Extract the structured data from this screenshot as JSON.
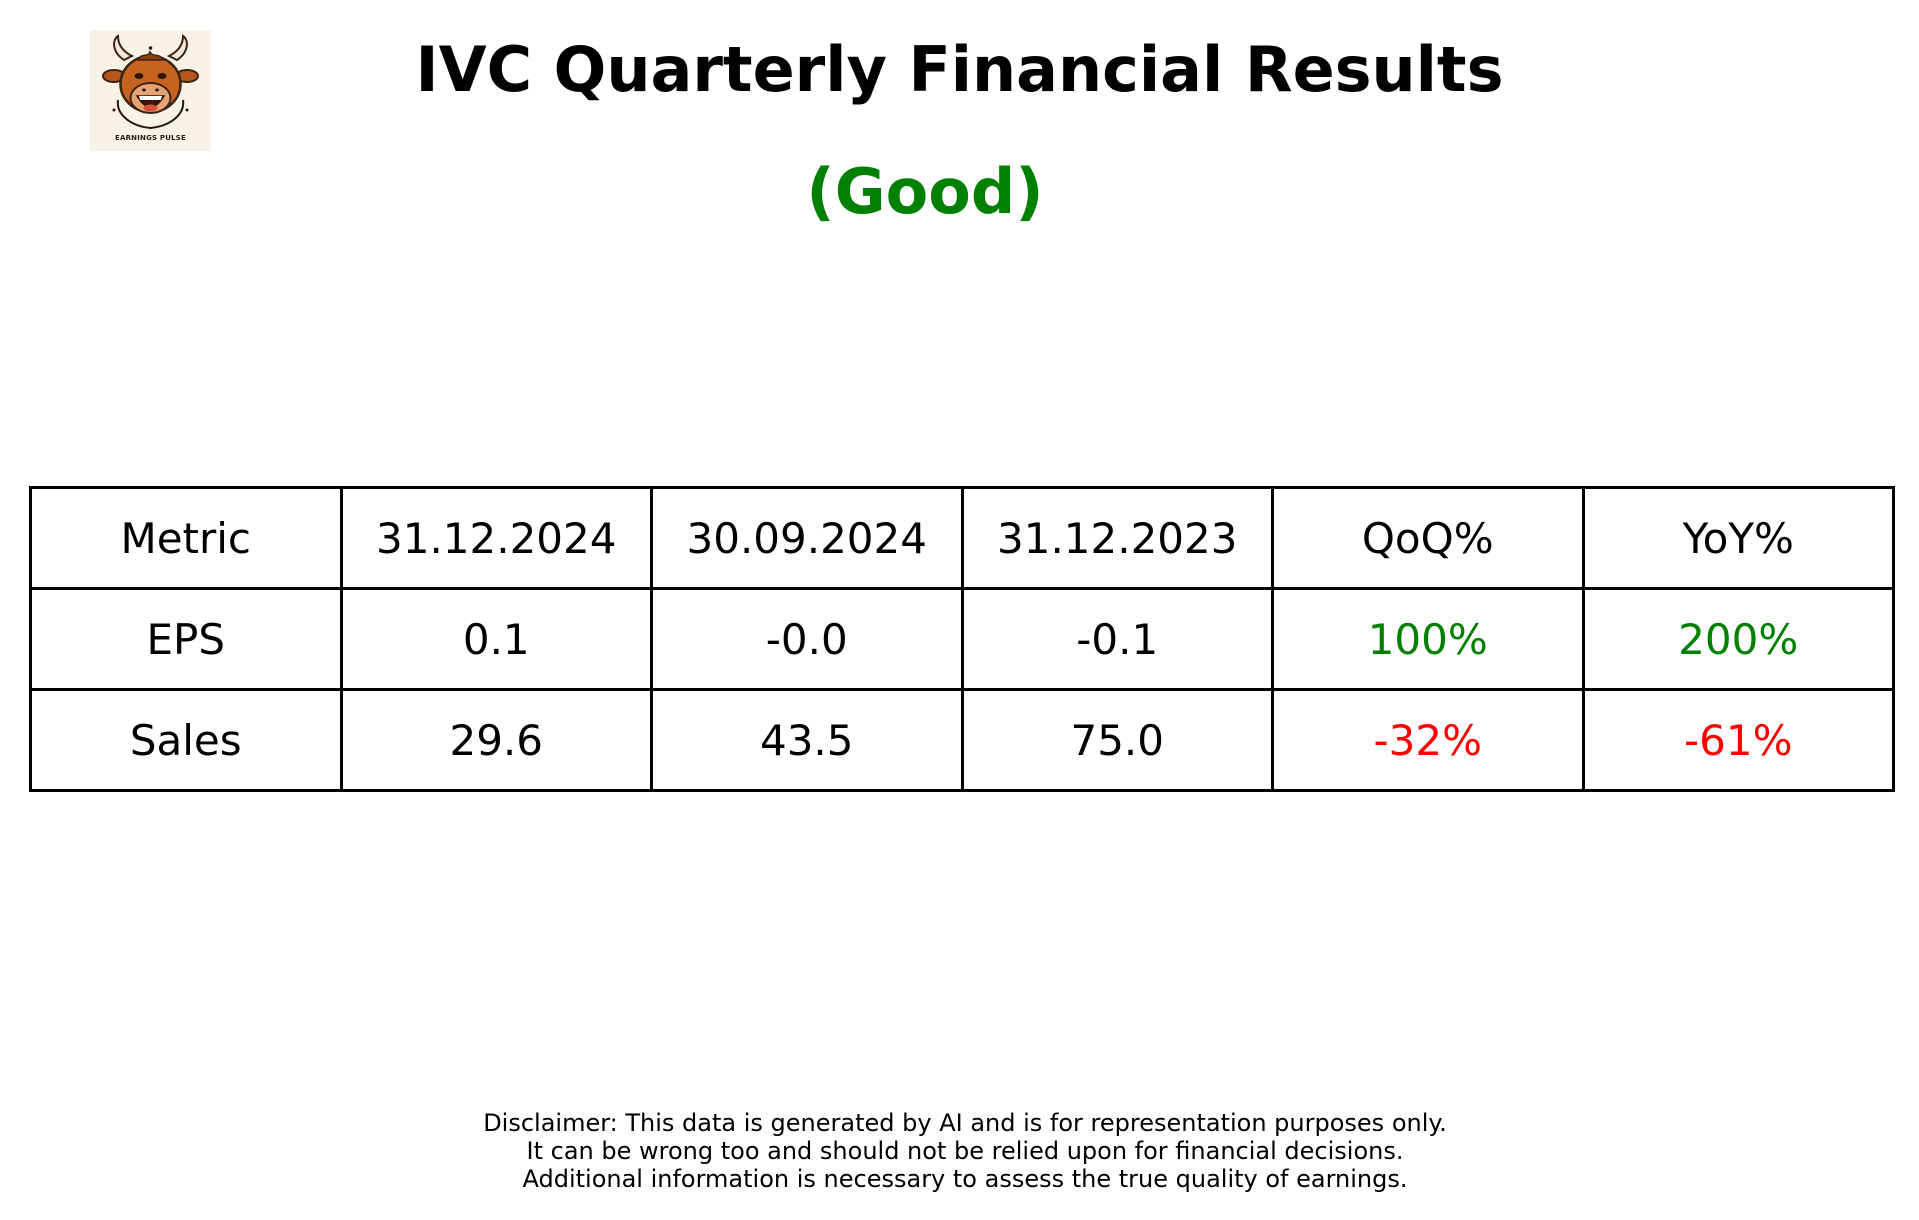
{
  "logo": {
    "text": "EARNINGS PULSE"
  },
  "header": {
    "title": "IVC Quarterly Financial Results",
    "rating": "(Good)",
    "rating_color": "#008000"
  },
  "table": {
    "columns": [
      "Metric",
      "31.12.2024",
      "30.09.2024",
      "31.12.2023",
      "QoQ%",
      "YoY%"
    ],
    "rows": [
      {
        "metric": "EPS",
        "q1": "0.1",
        "q2": "-0.0",
        "q3": "-0.1",
        "qoq": "100%",
        "yoy": "200%"
      },
      {
        "metric": "Sales",
        "q1": "29.6",
        "q2": "43.5",
        "q3": "75.0",
        "qoq": "-32%",
        "yoy": "-61%"
      }
    ],
    "positive_color": "#008000",
    "negative_color": "#ff0000"
  },
  "disclaimer": {
    "lines": [
      "Disclaimer: This data is generated by AI and is for representation purposes only.",
      "It can be wrong too and should not be relied upon for financial decisions.",
      "Additional information is necessary to assess the true quality of earnings."
    ]
  }
}
